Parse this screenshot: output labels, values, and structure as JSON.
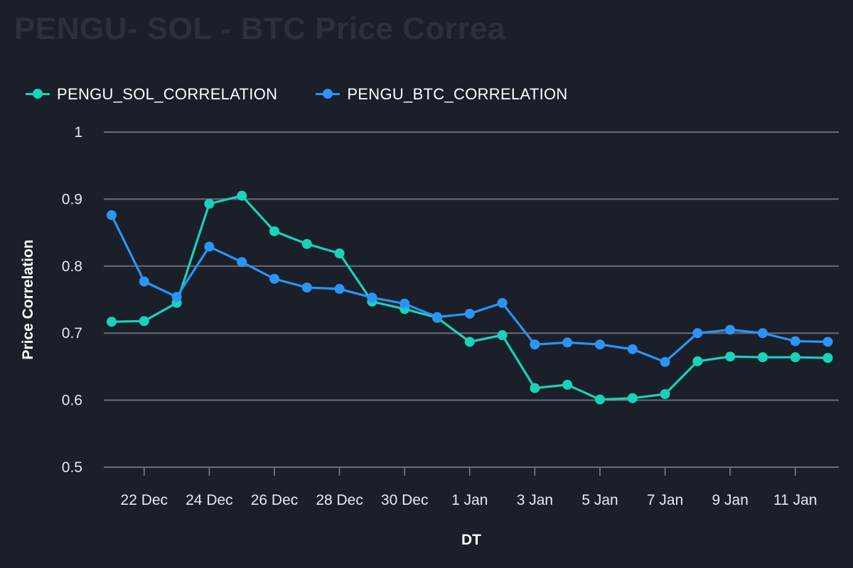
{
  "title": "PENGU- SOL - BTC Price Correa",
  "chart_data": {
    "type": "line",
    "title": "PENGU- SOL - BTC Price Correa",
    "xlabel": "DT",
    "ylabel": "Price Correlation",
    "ylim": [
      0.5,
      1.0
    ],
    "yticks": [
      "0.5",
      "0.6",
      "0.7",
      "0.8",
      "0.9",
      "1"
    ],
    "grid": true,
    "legend_position": "top-left",
    "x": [
      "21 Dec",
      "22 Dec",
      "23 Dec",
      "24 Dec",
      "25 Dec",
      "26 Dec",
      "27 Dec",
      "28 Dec",
      "29 Dec",
      "30 Dec",
      "31 Dec",
      "1 Jan",
      "2 Jan",
      "3 Jan",
      "4 Jan",
      "5 Jan",
      "6 Jan",
      "7 Jan",
      "8 Jan",
      "9 Jan",
      "10 Jan",
      "11 Jan",
      "12 Jan"
    ],
    "xtick_labels": [
      "22 Dec",
      "24 Dec",
      "26 Dec",
      "28 Dec",
      "30 Dec",
      "1 Jan",
      "3 Jan",
      "5 Jan",
      "7 Jan",
      "9 Jan",
      "11 Jan"
    ],
    "series": [
      {
        "name": "PENGU_SOL_CORRELATION",
        "color": "#19d3b8",
        "values": [
          0.717,
          0.718,
          0.745,
          0.893,
          0.905,
          0.852,
          0.833,
          0.819,
          0.747,
          0.736,
          0.723,
          0.687,
          0.697,
          0.618,
          0.623,
          0.601,
          0.603,
          0.609,
          0.658,
          0.665,
          0.664,
          0.664,
          0.663
        ]
      },
      {
        "name": "PENGU_BTC_CORRELATION",
        "color": "#2a95f6",
        "values": [
          0.876,
          0.777,
          0.754,
          0.829,
          0.806,
          0.781,
          0.768,
          0.766,
          0.753,
          0.744,
          0.724,
          0.729,
          0.745,
          0.683,
          0.686,
          0.683,
          0.676,
          0.657,
          0.7,
          0.705,
          0.7,
          0.688,
          0.687
        ]
      }
    ]
  }
}
